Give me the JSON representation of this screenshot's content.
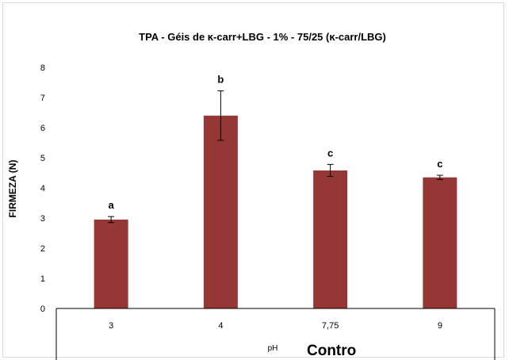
{
  "chart_data": {
    "type": "bar",
    "title": "TPA - Géis de ĸ-carr+LBG - 1% - 75/25 (ĸ-carr/LBG)",
    "xlabel": "pH",
    "ylabel": "FIRMEZA (N)",
    "categories": [
      "3",
      "4",
      "7,75",
      "9"
    ],
    "values": [
      2.95,
      6.4,
      4.58,
      4.35
    ],
    "errors": [
      0.1,
      0.82,
      0.2,
      0.07
    ],
    "data_labels": [
      "a",
      "b",
      "c",
      "c"
    ],
    "ylim": [
      0,
      8
    ],
    "yticks": [
      "0",
      "1",
      "2",
      "3",
      "4",
      "5",
      "6",
      "7",
      "8"
    ],
    "grid": false,
    "bar_color": "#953735",
    "overlay_text": "Contro"
  }
}
